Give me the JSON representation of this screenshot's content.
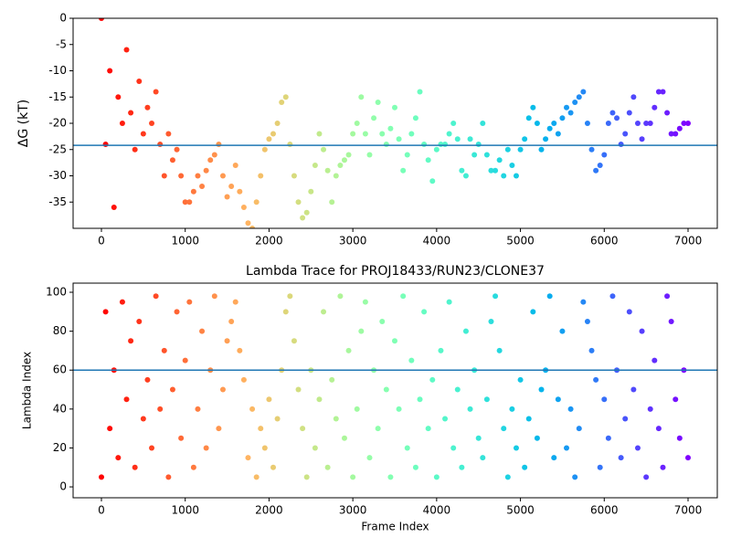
{
  "chart_data": [
    {
      "type": "scatter",
      "ylabel": "ΔG (kT)",
      "colormap": "rainbow_r",
      "x": [
        0,
        50,
        100,
        150,
        200,
        250,
        300,
        350,
        400,
        450,
        500,
        550,
        600,
        650,
        700,
        750,
        800,
        850,
        900,
        950,
        1000,
        1050,
        1100,
        1150,
        1200,
        1250,
        1300,
        1350,
        1400,
        1450,
        1500,
        1550,
        1600,
        1650,
        1700,
        1750,
        1800,
        1850,
        1900,
        1950,
        2000,
        2050,
        2100,
        2150,
        2200,
        2250,
        2300,
        2350,
        2400,
        2450,
        2500,
        2550,
        2600,
        2650,
        2700,
        2750,
        2800,
        2850,
        2900,
        2950,
        3000,
        3050,
        3100,
        3150,
        3200,
        3250,
        3300,
        3350,
        3400,
        3450,
        3500,
        3550,
        3600,
        3650,
        3700,
        3750,
        3800,
        3850,
        3900,
        3950,
        4000,
        4050,
        4100,
        4150,
        4200,
        4250,
        4300,
        4350,
        4400,
        4450,
        4500,
        4550,
        4600,
        4650,
        4700,
        4750,
        4800,
        4850,
        4900,
        4950,
        5000,
        5050,
        5100,
        5150,
        5200,
        5250,
        5300,
        5350,
        5400,
        5450,
        5500,
        5550,
        5600,
        5650,
        5700,
        5750,
        5800,
        5850,
        5900,
        5950,
        6000,
        6050,
        6100,
        6150,
        6200,
        6250,
        6300,
        6350,
        6400,
        6450,
        6500,
        6550,
        6600,
        6650,
        6700,
        6750,
        6800,
        6850,
        6900,
        6950,
        7000
      ],
      "values": [
        0,
        -24,
        -10,
        -36,
        -15,
        -20,
        -6,
        -18,
        -25,
        -12,
        -22,
        -17,
        -20,
        -14,
        -24,
        -30,
        -22,
        -27,
        -25,
        -30,
        -35,
        -35,
        -33,
        -30,
        -32,
        -29,
        -27,
        -26,
        -24,
        -30,
        -34,
        -32,
        -28,
        -33,
        -36,
        -39,
        -40,
        -35,
        -30,
        -25,
        -23,
        -22,
        -20,
        -16,
        -15,
        -24,
        -30,
        -35,
        -38,
        -37,
        -33,
        -28,
        -22,
        -25,
        -29,
        -35,
        -30,
        -28,
        -27,
        -26,
        -22,
        -20,
        -15,
        -22,
        -26,
        -19,
        -16,
        -22,
        -24,
        -21,
        -17,
        -23,
        -29,
        -26,
        -22,
        -19,
        -14,
        -24,
        -27,
        -31,
        -25,
        -24,
        -24,
        -22,
        -20,
        -23,
        -29,
        -30,
        -23,
        -26,
        -24,
        -20,
        -26,
        -29,
        -29,
        -27,
        -30,
        -25,
        -28,
        -30,
        -25,
        -23,
        -19,
        -17,
        -20,
        -25,
        -23,
        -21,
        -20,
        -22,
        -19,
        -17,
        -18,
        -16,
        -15,
        -14,
        -20,
        -25,
        -29,
        -28,
        -26,
        -20,
        -18,
        -19,
        -24,
        -22,
        -18,
        -15,
        -20,
        -23,
        -20,
        -20,
        -17,
        -14,
        -14,
        -18,
        -22,
        -22,
        -21,
        -20,
        -20
      ],
      "hline": -24.2,
      "hline_color": "#1f77b4",
      "xlim": [
        -338,
        7349
      ],
      "xticks": [
        0,
        1000,
        2000,
        3000,
        4000,
        5000,
        6000,
        7000
      ],
      "ylim": [
        -40,
        0
      ],
      "yticks": [
        0,
        -5,
        -10,
        -15,
        -20,
        -25,
        -30,
        -35
      ]
    },
    {
      "type": "scatter",
      "title": "Lambda Trace for PROJ18433/RUN23/CLONE37",
      "xlabel": "Frame Index",
      "ylabel": "Lambda Index",
      "colormap": "rainbow_r",
      "x": [
        0,
        50,
        100,
        150,
        200,
        250,
        300,
        350,
        400,
        450,
        500,
        550,
        600,
        650,
        700,
        750,
        800,
        850,
        900,
        950,
        1000,
        1050,
        1100,
        1150,
        1200,
        1250,
        1300,
        1350,
        1400,
        1450,
        1500,
        1550,
        1600,
        1650,
        1700,
        1750,
        1800,
        1850,
        1900,
        1950,
        2000,
        2050,
        2100,
        2150,
        2200,
        2250,
        2300,
        2350,
        2400,
        2450,
        2500,
        2550,
        2600,
        2650,
        2700,
        2750,
        2800,
        2850,
        2900,
        2950,
        3000,
        3050,
        3100,
        3150,
        3200,
        3250,
        3300,
        3350,
        3400,
        3450,
        3500,
        3550,
        3600,
        3650,
        3700,
        3750,
        3800,
        3850,
        3900,
        3950,
        4000,
        4050,
        4100,
        4150,
        4200,
        4250,
        4300,
        4350,
        4400,
        4450,
        4500,
        4550,
        4600,
        4650,
        4700,
        4750,
        4800,
        4850,
        4900,
        4950,
        5000,
        5050,
        5100,
        5150,
        5200,
        5250,
        5300,
        5350,
        5400,
        5450,
        5500,
        5550,
        5600,
        5650,
        5700,
        5750,
        5800,
        5850,
        5900,
        5950,
        6000,
        6050,
        6100,
        6150,
        6200,
        6250,
        6300,
        6350,
        6400,
        6450,
        6500,
        6550,
        6600,
        6650,
        6700,
        6750,
        6800,
        6850,
        6900,
        6950,
        7000
      ],
      "values": [
        5,
        90,
        30,
        60,
        15,
        95,
        45,
        75,
        10,
        85,
        35,
        55,
        20,
        98,
        40,
        70,
        5,
        50,
        90,
        25,
        65,
        95,
        10,
        40,
        80,
        20,
        60,
        98,
        30,
        50,
        75,
        85,
        95,
        70,
        55,
        15,
        40,
        5,
        30,
        20,
        45,
        10,
        35,
        60,
        90,
        98,
        75,
        50,
        30,
        5,
        60,
        20,
        45,
        90,
        10,
        55,
        35,
        98,
        25,
        70,
        5,
        40,
        80,
        95,
        15,
        60,
        30,
        85,
        50,
        5,
        75,
        40,
        98,
        20,
        65,
        10,
        45,
        90,
        30,
        55,
        5,
        70,
        35,
        95,
        20,
        50,
        10,
        80,
        40,
        60,
        25,
        15,
        45,
        85,
        98,
        70,
        30,
        5,
        40,
        20,
        55,
        10,
        35,
        90,
        25,
        50,
        60,
        98,
        15,
        45,
        80,
        20,
        40,
        5,
        30,
        95,
        85,
        70,
        55,
        10,
        45,
        25,
        98,
        60,
        15,
        35,
        90,
        50,
        20,
        80,
        5,
        40,
        65,
        30,
        10,
        98,
        85,
        45,
        25,
        60,
        15
      ],
      "hline": 60,
      "hline_color": "#1f77b4",
      "xlim": [
        -338,
        7349
      ],
      "xticks": [
        0,
        1000,
        2000,
        3000,
        4000,
        5000,
        6000,
        7000
      ],
      "ylim": [
        -5.6,
        104.7
      ],
      "yticks": [
        0,
        20,
        40,
        60,
        80,
        100
      ]
    }
  ]
}
